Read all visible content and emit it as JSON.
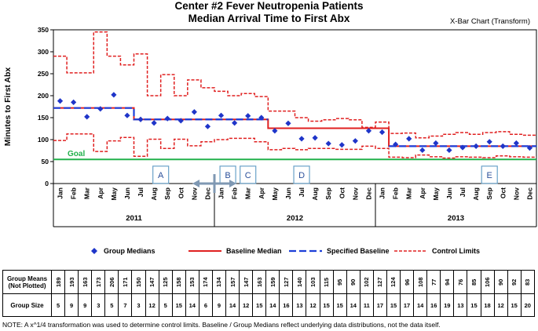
{
  "title": {
    "line1": "Center #2 Fever Neutropenia Patients",
    "line2": "Median Arrival Time to First Abx",
    "chart_type": "X-Bar Chart (Transform)"
  },
  "chart_data": {
    "type": "line",
    "ylabel": "Minutes to First Abx",
    "ylim": [
      0,
      350
    ],
    "yticks": [
      0,
      50,
      100,
      150,
      200,
      250,
      300,
      350
    ],
    "categories": [
      "Jan",
      "Feb",
      "Mar",
      "Apr",
      "May",
      "Jun",
      "Jul",
      "Aug",
      "Sep",
      "Oct",
      "Nov",
      "Dec",
      "Jan",
      "Feb",
      "Mar",
      "Apr",
      "May",
      "Jun",
      "Jul",
      "Aug",
      "Sep",
      "Oct",
      "Nov",
      "Dec",
      "Jan",
      "Feb",
      "Mar",
      "Apr",
      "May",
      "Jun",
      "Jul",
      "Aug",
      "Sep",
      "Oct",
      "Nov",
      "Dec"
    ],
    "years": [
      "2011",
      "2012",
      "2013"
    ],
    "goal": {
      "label": "Goal",
      "value": 55
    },
    "series": [
      {
        "name": "Group Medians",
        "style": "diamond",
        "values": [
          188,
          185,
          152,
          170,
          202,
          155,
          146,
          138,
          148,
          143,
          163,
          130,
          155,
          138,
          154,
          150,
          120,
          137,
          102,
          104,
          91,
          88,
          97,
          120,
          117,
          89,
          102,
          76,
          92,
          76,
          82,
          85,
          95,
          85,
          92,
          81
        ]
      },
      {
        "name": "Baseline Median",
        "style": "solid-red",
        "values": [
          172,
          172,
          172,
          172,
          172,
          172,
          146,
          146,
          146,
          146,
          146,
          146,
          146,
          146,
          146,
          146,
          126,
          126,
          126,
          126,
          126,
          126,
          126,
          126,
          126,
          85,
          85,
          85,
          85,
          85,
          85,
          85,
          85,
          85,
          85,
          85
        ]
      },
      {
        "name": "Specified Baseline",
        "style": "dashed-blue",
        "values": [
          172,
          172,
          172,
          172,
          172,
          172,
          146,
          146,
          146,
          146,
          146,
          146,
          146,
          146,
          146,
          146,
          null,
          null,
          null,
          null,
          null,
          null,
          null,
          null,
          null,
          85,
          85,
          85,
          85,
          85,
          85,
          85,
          85,
          85,
          85,
          85
        ]
      },
      {
        "name": "Control Limits",
        "style": "dashed-red",
        "upper": [
          290,
          252,
          252,
          345,
          290,
          270,
          295,
          200,
          248,
          200,
          236,
          218,
          210,
          200,
          205,
          198,
          165,
          165,
          150,
          142,
          145,
          148,
          145,
          128,
          140,
          114,
          115,
          104,
          108,
          112,
          116,
          112,
          116,
          118,
          112,
          110
        ],
        "lower": [
          98,
          113,
          113,
          73,
          97,
          105,
          62,
          101,
          80,
          101,
          86,
          95,
          100,
          103,
          103,
          95,
          77,
          80,
          77,
          80,
          80,
          78,
          78,
          85,
          80,
          60,
          59,
          65,
          61,
          58,
          61,
          60,
          59,
          63,
          61,
          60
        ]
      }
    ],
    "annotations": [
      "A",
      "B",
      "C",
      "D",
      "E"
    ],
    "legend_position": "bottom",
    "grid": false
  },
  "table": {
    "row1_label": "Group Means (Not Plotted)",
    "row2_label": "Group Size",
    "means": [
      "189",
      "193",
      "163",
      "173",
      "206",
      "171",
      "150",
      "147",
      "125",
      "158",
      "153",
      "174",
      "134",
      "157",
      "147",
      "163",
      "159",
      "127",
      "140",
      "103",
      "115",
      "95",
      "90",
      "102",
      "127",
      "124",
      "96",
      "108",
      "77",
      "94",
      "76",
      "85",
      "106",
      "90",
      "92",
      "83"
    ],
    "sizes": [
      "5",
      "9",
      "9",
      "3",
      "5",
      "7",
      "3",
      "12",
      "5",
      "15",
      "14",
      "6",
      "9",
      "14",
      "12",
      "15",
      "14",
      "16",
      "13",
      "12",
      "15",
      "15",
      "14",
      "11",
      "17",
      "15",
      "17",
      "14",
      "16",
      "19",
      "13",
      "15",
      "18",
      "12",
      "15",
      "20"
    ]
  },
  "note": "NOTE: A x^1/4 transformation was used to determine control limits.  Baseline / Group Medians reflect underlying data distributions, not the data itself.",
  "colors": {
    "diamond": "#1f35c9",
    "red": "#e02020",
    "blue": "#1c3fd8",
    "goal": "#22b14c",
    "box": "#6aa2c8",
    "arrow": "#7f98b3"
  }
}
